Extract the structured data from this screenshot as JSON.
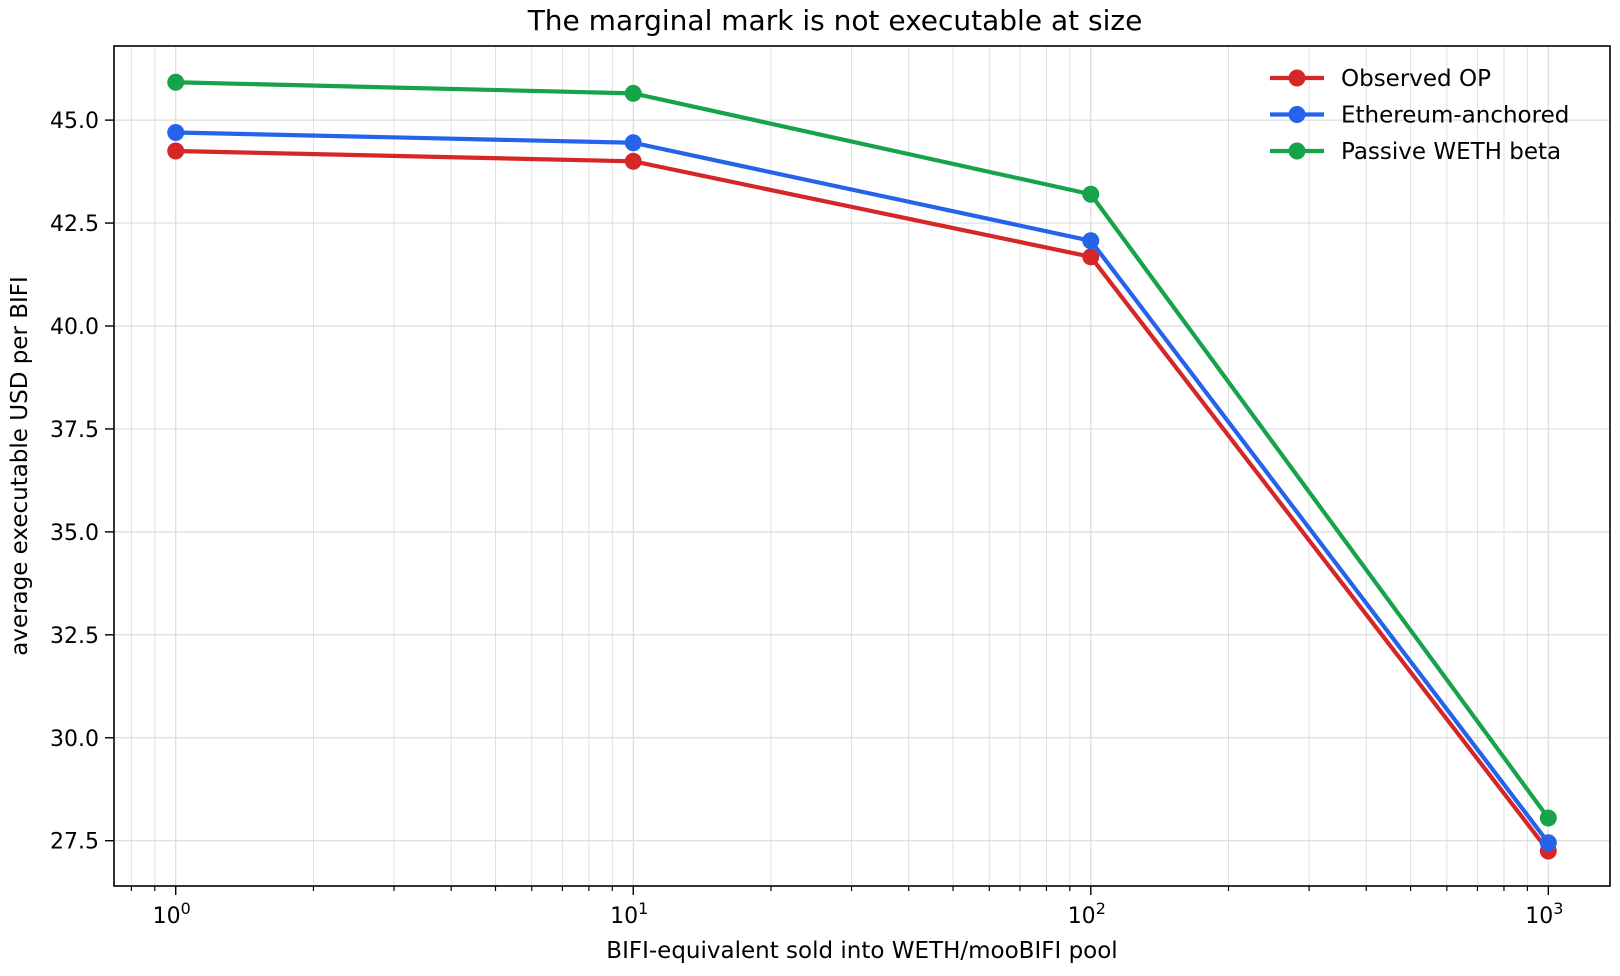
{
  "chart_data": {
    "type": "line",
    "title": "The marginal mark is not executable at size",
    "xlabel": "BIFI-equivalent sold into WETH/mooBIFI pool",
    "ylabel": "average executable USD per BIFI",
    "x_scale": "log",
    "x": [
      1,
      10,
      100,
      1000
    ],
    "xlim": [
      0.733,
      1364
    ],
    "ylim": [
      26.4,
      46.8
    ],
    "x_ticks": [
      {
        "value": 1,
        "base": "10",
        "exp": "0"
      },
      {
        "value": 10,
        "base": "10",
        "exp": "1"
      },
      {
        "value": 100,
        "base": "10",
        "exp": "2"
      },
      {
        "value": 1000,
        "base": "10",
        "exp": "3"
      }
    ],
    "y_ticks": [
      {
        "value": 27.5,
        "label": "27.5"
      },
      {
        "value": 30.0,
        "label": "30.0"
      },
      {
        "value": 32.5,
        "label": "32.5"
      },
      {
        "value": 35.0,
        "label": "35.0"
      },
      {
        "value": 37.5,
        "label": "37.5"
      },
      {
        "value": 40.0,
        "label": "40.0"
      },
      {
        "value": 42.5,
        "label": "42.5"
      },
      {
        "value": 45.0,
        "label": "45.0"
      }
    ],
    "grid": true,
    "legend_position": "top-right",
    "series": [
      {
        "name": "Observed OP",
        "color": "#d62728",
        "values": [
          44.25,
          44.0,
          41.68,
          27.25
        ]
      },
      {
        "name": "Ethereum-anchored",
        "color": "#2563eb",
        "values": [
          44.7,
          44.45,
          42.07,
          27.45
        ]
      },
      {
        "name": "Passive WETH beta",
        "color": "#16a34a",
        "values": [
          45.92,
          45.65,
          43.2,
          28.05
        ]
      }
    ]
  }
}
